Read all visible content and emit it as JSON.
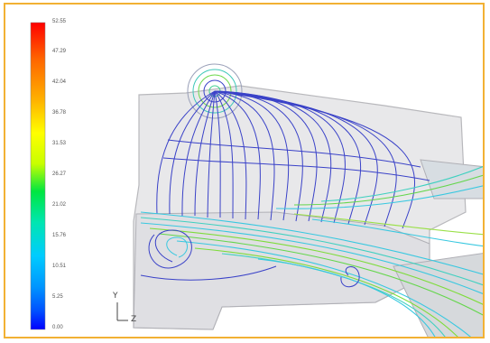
{
  "legend": {
    "labels": [
      "52.55",
      "47.29",
      "42.04",
      "36.78",
      "31.53",
      "26.27",
      "21.02",
      "15.76",
      "10.51",
      "5.25",
      "0.00"
    ],
    "colors": [
      "#ff0000",
      "#ff6600",
      "#ffb000",
      "#ffff00",
      "#c8ff00",
      "#00e640",
      "#00e6b0",
      "#00ccff",
      "#0096ff",
      "#0050ff",
      "#0000ff"
    ]
  },
  "axis": {
    "y_label": "Y",
    "z_label": "Z"
  },
  "colors": {
    "frame_border": "#f2b134",
    "housing_fill": "#e8e8ea",
    "housing_stroke": "#b8b8bc",
    "streamline_blue": "#3a42c8",
    "streamline_cyan": "#38c8e0",
    "streamline_green": "#7ddc3a"
  }
}
